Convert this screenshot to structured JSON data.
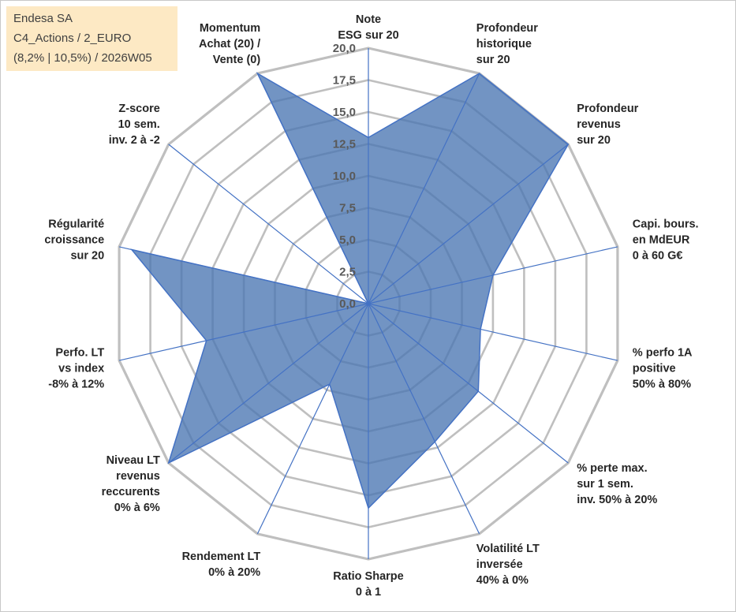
{
  "info": {
    "line1": "Endesa SA",
    "line2": "C4_Actions / 2_EURO",
    "line3": "(8,2% | 10,5%) / 2026W05"
  },
  "chart_data": {
    "type": "radar",
    "title": "",
    "rmin": 0,
    "rmax": 20,
    "ticks": [
      "0,0",
      "2,5",
      "5,0",
      "7,5",
      "10,0",
      "12,5",
      "15,0",
      "17,5",
      "20,0"
    ],
    "axes": [
      [
        "Note",
        "ESG sur 20"
      ],
      [
        "Profondeur",
        "historique",
        "sur 20"
      ],
      [
        "Profondeur",
        "revenus",
        "sur 20"
      ],
      [
        "Capi. bours.",
        "en MdEUR",
        "0 à 60 G€"
      ],
      [
        "% perfo 1A",
        "positive",
        "50% à 80%"
      ],
      [
        "% perte max.",
        "sur 1 sem.",
        "inv. 50% à 20%"
      ],
      [
        "Volatilité LT",
        "inversée",
        "40% à 0%"
      ],
      [
        "Ratio Sharpe",
        "0 à 1"
      ],
      [
        "Rendement LT",
        "0% à 20%"
      ],
      [
        "Niveau LT",
        "revenus",
        "reccurents",
        "0% à 6%"
      ],
      [
        "Perfo. LT",
        "vs index",
        "-8% à 12%"
      ],
      [
        "Régularité",
        "croissance",
        "sur 20"
      ],
      [
        "Z-score",
        "10 sem.",
        "inv. 2 à -2"
      ],
      [
        "Momentum",
        "Achat (20) /",
        "Vente (0)"
      ]
    ],
    "series": [
      {
        "name": "Endesa SA",
        "values": [
          13,
          20,
          20,
          10,
          9,
          11,
          12,
          16,
          7,
          20,
          13,
          19,
          0,
          20
        ]
      }
    ],
    "colors": {
      "fill": "#4a76b2",
      "stroke": "#4472c4",
      "grid": "#bfbfbf",
      "spoke": "#4472c4"
    }
  }
}
